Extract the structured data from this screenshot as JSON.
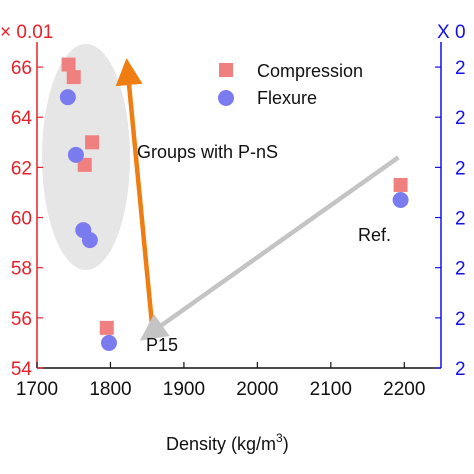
{
  "chart_data": {
    "type": "scatter",
    "xlabel_main": "Density (kg/m",
    "xlabel_sup": "3",
    "xlabel_tail": ")",
    "xlim": [
      1700,
      2250
    ],
    "x_ticks": [
      1700,
      1800,
      1900,
      2000,
      2100,
      2200
    ],
    "y_left": {
      "color": "#e8202a",
      "multiplier_label": "× 0.01",
      "range": [
        5.4,
        6.7
      ],
      "ticks": [
        {
          "value": 5.4,
          "label": "54"
        },
        {
          "value": 5.6,
          "label": "56"
        },
        {
          "value": 5.8,
          "label": "58"
        },
        {
          "value": 6.0,
          "label": "60"
        },
        {
          "value": 6.2,
          "label": "62"
        },
        {
          "value": 6.4,
          "label": "64"
        },
        {
          "value": 6.6,
          "label": "66"
        }
      ]
    },
    "y_right": {
      "color": "#1010ee",
      "multiplier_label": "X 0",
      "tick_label": "2"
    },
    "series": [
      {
        "name": "Compression",
        "marker": "square",
        "color": "#f08080",
        "points": [
          {
            "x": 1743,
            "y": 6.61
          },
          {
            "x": 1750,
            "y": 6.56
          },
          {
            "x": 1775,
            "y": 6.3
          },
          {
            "x": 1765,
            "y": 6.21
          },
          {
            "x": 1795,
            "y": 5.56
          },
          {
            "x": 2195,
            "y": 6.13
          }
        ]
      },
      {
        "name": "Flexure",
        "marker": "circle",
        "color": "#7b7bf0",
        "points": [
          {
            "x": 1742,
            "y": 6.48
          },
          {
            "x": 1753,
            "y": 6.25
          },
          {
            "x": 1763,
            "y": 5.95
          },
          {
            "x": 1772,
            "y": 5.91
          },
          {
            "x": 1798,
            "y": 5.5
          },
          {
            "x": 2195,
            "y": 6.07
          }
        ]
      }
    ],
    "annotations": {
      "groups_label": "Groups with P-nS",
      "ref_label": "Ref.",
      "p15_label": "P15"
    },
    "arrows": [
      {
        "name": "orange",
        "color": "#f07d12",
        "from": {
          "x": 1858,
          "y": 5.53
        },
        "to": {
          "x": 1823,
          "y": 6.6
        }
      },
      {
        "name": "gray",
        "color": "#c4c4c4",
        "from": {
          "x": 2192,
          "y": 6.24
        },
        "to": {
          "x": 1850,
          "y": 5.53
        }
      }
    ],
    "group_ellipse_color": "#e6e6e6"
  }
}
